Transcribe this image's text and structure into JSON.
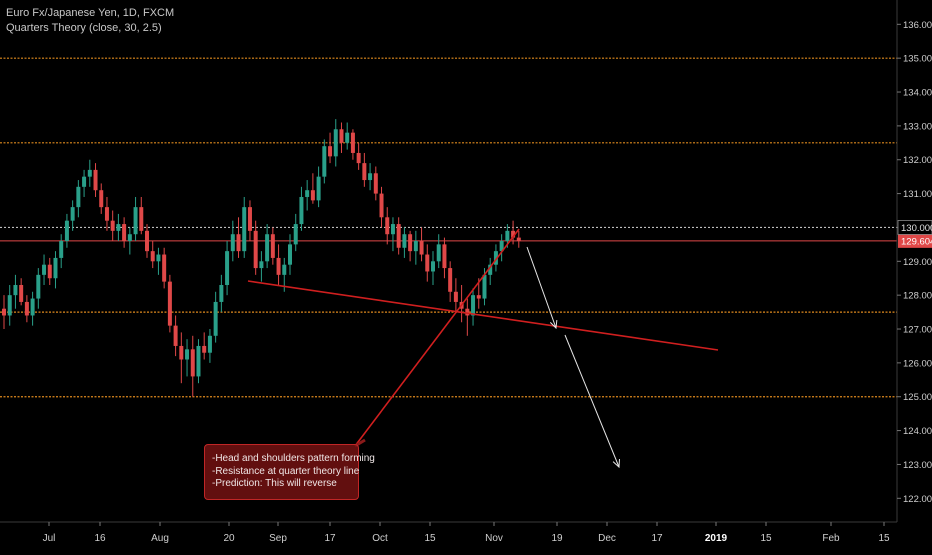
{
  "chart_data": {
    "type": "candlestick",
    "title": "Euro Fx/Japanese Yen, 1D, FXCM",
    "indicator": "Quarters Theory (close, 30, 2.5)",
    "ylim": [
      121.3,
      136.6
    ],
    "y_ticks": [
      "136.000",
      "135.000",
      "134.000",
      "133.000",
      "132.000",
      "131.000",
      "130.000",
      "129.000",
      "128.000",
      "127.000",
      "126.000",
      "125.000",
      "124.000",
      "123.000",
      "122.000"
    ],
    "x_ticks": [
      "Jul",
      "16",
      "Aug",
      "20",
      "Sep",
      "17",
      "Oct",
      "15",
      "Nov",
      "19",
      "Dec",
      "17",
      "2019",
      "15",
      "Feb",
      "15"
    ],
    "last_price": "129.604",
    "quarter_levels": [
      125.0,
      127.5,
      130.0,
      132.5,
      135.0
    ],
    "candles_ohlc": [
      [
        127.6,
        128.0,
        127.0,
        127.4
      ],
      [
        127.4,
        128.3,
        127.1,
        128.0
      ],
      [
        128.0,
        128.6,
        127.6,
        128.3
      ],
      [
        128.3,
        128.5,
        127.7,
        127.8
      ],
      [
        127.8,
        128.0,
        127.2,
        127.4
      ],
      [
        127.4,
        128.1,
        127.1,
        127.9
      ],
      [
        127.9,
        128.8,
        127.6,
        128.6
      ],
      [
        128.6,
        129.2,
        128.3,
        128.9
      ],
      [
        128.9,
        129.1,
        128.3,
        128.5
      ],
      [
        128.5,
        129.3,
        128.2,
        129.1
      ],
      [
        129.1,
        129.8,
        128.8,
        129.6
      ],
      [
        129.6,
        130.4,
        129.4,
        130.2
      ],
      [
        130.2,
        130.8,
        129.9,
        130.6
      ],
      [
        130.6,
        131.4,
        130.3,
        131.2
      ],
      [
        131.2,
        131.7,
        130.9,
        131.5
      ],
      [
        131.5,
        132.0,
        131.2,
        131.7
      ],
      [
        131.7,
        131.9,
        130.9,
        131.1
      ],
      [
        131.1,
        131.3,
        130.4,
        130.6
      ],
      [
        130.6,
        130.9,
        129.9,
        130.2
      ],
      [
        130.2,
        130.5,
        129.6,
        129.9
      ],
      [
        129.9,
        130.4,
        129.6,
        130.1
      ],
      [
        130.1,
        130.3,
        129.4,
        129.6
      ],
      [
        129.6,
        130.0,
        129.2,
        129.8
      ],
      [
        129.8,
        130.9,
        129.6,
        130.6
      ],
      [
        130.6,
        130.9,
        129.8,
        129.9
      ],
      [
        129.9,
        130.1,
        129.1,
        129.3
      ],
      [
        129.3,
        129.6,
        128.8,
        129.0
      ],
      [
        129.0,
        129.4,
        128.6,
        129.2
      ],
      [
        129.2,
        129.4,
        128.2,
        128.4
      ],
      [
        128.4,
        128.6,
        126.9,
        127.1
      ],
      [
        127.1,
        127.4,
        126.2,
        126.5
      ],
      [
        126.5,
        126.9,
        125.4,
        126.1
      ],
      [
        126.1,
        126.7,
        125.6,
        126.4
      ],
      [
        126.4,
        126.8,
        125.0,
        125.6
      ],
      [
        125.6,
        126.7,
        125.4,
        126.5
      ],
      [
        126.5,
        126.9,
        126.1,
        126.3
      ],
      [
        126.3,
        127.0,
        126.0,
        126.8
      ],
      [
        126.8,
        128.1,
        126.6,
        127.8
      ],
      [
        127.8,
        128.6,
        127.5,
        128.3
      ],
      [
        128.3,
        129.6,
        128.0,
        129.3
      ],
      [
        129.3,
        130.2,
        129.0,
        129.8
      ],
      [
        129.8,
        130.3,
        129.1,
        129.3
      ],
      [
        129.3,
        130.9,
        129.1,
        130.6
      ],
      [
        130.6,
        130.8,
        129.6,
        129.9
      ],
      [
        129.9,
        130.2,
        128.6,
        128.8
      ],
      [
        128.8,
        129.3,
        128.4,
        129.0
      ],
      [
        129.0,
        130.1,
        128.8,
        129.8
      ],
      [
        129.8,
        130.0,
        128.9,
        129.1
      ],
      [
        129.1,
        129.5,
        128.3,
        128.6
      ],
      [
        128.6,
        129.1,
        128.1,
        128.9
      ],
      [
        128.9,
        129.8,
        128.6,
        129.5
      ],
      [
        129.5,
        130.4,
        129.3,
        130.1
      ],
      [
        130.1,
        131.2,
        129.9,
        130.9
      ],
      [
        130.9,
        131.4,
        130.5,
        131.1
      ],
      [
        131.1,
        131.6,
        130.7,
        130.8
      ],
      [
        130.8,
        131.8,
        130.6,
        131.5
      ],
      [
        131.5,
        132.6,
        131.3,
        132.4
      ],
      [
        132.4,
        132.8,
        131.9,
        132.1
      ],
      [
        132.1,
        133.2,
        131.8,
        132.9
      ],
      [
        132.9,
        133.1,
        132.2,
        132.5
      ],
      [
        132.5,
        133.1,
        132.3,
        132.8
      ],
      [
        132.8,
        132.9,
        132.0,
        132.2
      ],
      [
        132.2,
        132.5,
        131.7,
        131.9
      ],
      [
        131.9,
        132.2,
        131.2,
        131.4
      ],
      [
        131.4,
        131.9,
        131.1,
        131.6
      ],
      [
        131.6,
        131.8,
        130.8,
        131.0
      ],
      [
        131.0,
        131.2,
        130.0,
        130.3
      ],
      [
        130.3,
        130.6,
        129.5,
        129.8
      ],
      [
        129.8,
        130.3,
        129.3,
        130.1
      ],
      [
        130.1,
        130.3,
        129.2,
        129.4
      ],
      [
        129.4,
        130.0,
        129.1,
        129.8
      ],
      [
        129.8,
        129.9,
        129.0,
        129.3
      ],
      [
        129.3,
        129.9,
        128.9,
        129.6
      ],
      [
        129.6,
        130.0,
        129.0,
        129.2
      ],
      [
        129.2,
        129.5,
        128.4,
        128.7
      ],
      [
        128.7,
        129.3,
        128.3,
        129.0
      ],
      [
        129.0,
        129.8,
        128.8,
        129.5
      ],
      [
        129.5,
        129.7,
        128.5,
        128.8
      ],
      [
        128.8,
        129.0,
        127.8,
        128.1
      ],
      [
        128.1,
        128.5,
        127.5,
        127.8
      ],
      [
        127.8,
        128.3,
        127.2,
        127.6
      ],
      [
        127.6,
        127.9,
        126.8,
        127.4
      ],
      [
        127.4,
        128.2,
        127.1,
        128.0
      ],
      [
        128.0,
        128.5,
        127.6,
        127.9
      ],
      [
        127.9,
        128.8,
        127.7,
        128.6
      ],
      [
        128.6,
        129.1,
        128.3,
        128.9
      ],
      [
        128.9,
        129.5,
        128.7,
        129.3
      ],
      [
        129.3,
        129.8,
        129.0,
        129.6
      ],
      [
        129.6,
        130.1,
        129.4,
        129.9
      ],
      [
        129.9,
        130.2,
        129.5,
        129.7
      ],
      [
        129.7,
        129.9,
        129.4,
        129.6
      ]
    ]
  },
  "annotation": {
    "lines": [
      "-Head and shoulders pattern forming",
      "-Resistance at quarter theory line",
      "-Prediction: This will reverse"
    ]
  },
  "colors": {
    "background": "#000000",
    "up": "#2aa08a",
    "down": "#e04848",
    "quarter_line": "#e08a1e",
    "neckline": "#d01f1f",
    "arrow": "#e6e6e6",
    "price_tag": "#e04848"
  }
}
